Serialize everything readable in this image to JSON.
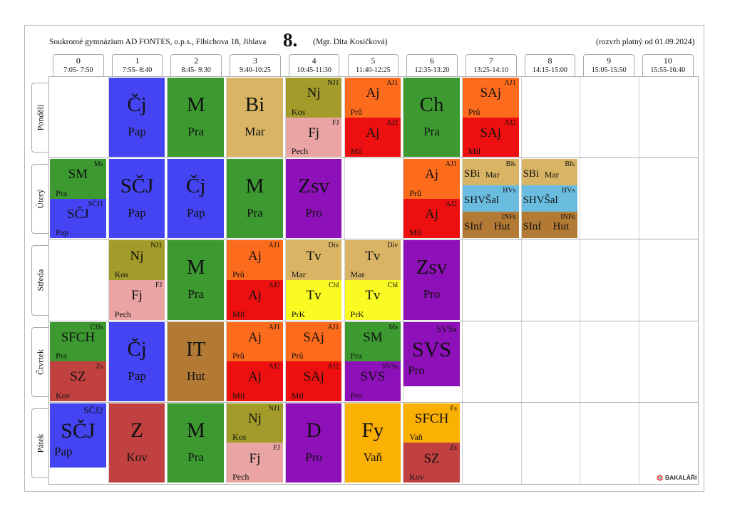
{
  "header": {
    "school": "Soukromé gymnázium AD FONTES, o.p.s., Fibichova 18, Jihlava",
    "class_name": "8.",
    "teacher": "(Mgr. Dita Kosičková)",
    "valid_from": "(rozvrh platný od 01.09.2024)"
  },
  "periods": [
    {
      "num": "0",
      "time": "7:05- 7:50"
    },
    {
      "num": "1",
      "time": "7:55- 8:40"
    },
    {
      "num": "2",
      "time": "8:45- 9:30"
    },
    {
      "num": "3",
      "time": "9:40-10:25"
    },
    {
      "num": "4",
      "time": "10:45-11:30"
    },
    {
      "num": "5",
      "time": "11:40-12:25"
    },
    {
      "num": "6",
      "time": "12:35-13:20"
    },
    {
      "num": "7",
      "time": "13:25-14:10"
    },
    {
      "num": "8",
      "time": "14:15-15:00"
    },
    {
      "num": "9",
      "time": "15:05-15:50"
    },
    {
      "num": "10",
      "time": "15:55-16:40"
    }
  ],
  "days": [
    "Pondělí",
    "Úterý",
    "Středa",
    "Čtvrtek",
    "Pátek"
  ],
  "colors": {
    "Cj": "#4444f2",
    "M": "#3c9a31",
    "Bi": "#d8b464",
    "Nj": "#a39c2a",
    "Fj": "#eaa4a4",
    "Aj1": "#fd6b1c",
    "Aj2": "#ee1010",
    "Ch": "#3c9a31",
    "Zsv": "#8e10b8",
    "Tv1": "#d8b464",
    "Tv2": "#fbfb24",
    "IT": "#b27a34",
    "Z": "#c14141",
    "D": "#8e10b8",
    "Fy": "#fbb104",
    "SVS": "#8e10b8",
    "SBi": "#d8b464",
    "SHV": "#6bbde0",
    "SInf": "#b27a34",
    "SFCH": "#fbb104"
  },
  "lessons": [
    {
      "day": 0,
      "period": 1,
      "color": "#4444f2",
      "subject": "Čj",
      "teacher": "Pap"
    },
    {
      "day": 0,
      "period": 2,
      "color": "#3c9a31",
      "subject": "M",
      "teacher": "Pra"
    },
    {
      "day": 0,
      "period": 3,
      "color": "#d8b464",
      "subject": "Bi",
      "teacher": "Mar"
    },
    {
      "day": 0,
      "period": 4,
      "color": "#a39c2a",
      "subject": "Nj",
      "teacher": "Kos",
      "group": "NJ1",
      "part": 0,
      "parts": 2
    },
    {
      "day": 0,
      "period": 4,
      "color": "#eaa4a4",
      "subject": "Fj",
      "teacher": "Pech",
      "group": "FJ",
      "part": 1,
      "parts": 2
    },
    {
      "day": 0,
      "period": 5,
      "color": "#fd6b1c",
      "subject": "Aj",
      "teacher": "Prů",
      "group": "AJ1",
      "part": 0,
      "parts": 2
    },
    {
      "day": 0,
      "period": 5,
      "color": "#ee1010",
      "subject": "Aj",
      "teacher": "Mil",
      "group": "AJ2",
      "part": 1,
      "parts": 2
    },
    {
      "day": 0,
      "period": 6,
      "color": "#3c9a31",
      "subject": "Ch",
      "teacher": "Pra"
    },
    {
      "day": 0,
      "period": 7,
      "color": "#fd6b1c",
      "subject": "SAj",
      "teacher": "Prů",
      "group": "AJ1",
      "part": 0,
      "parts": 2
    },
    {
      "day": 0,
      "period": 7,
      "color": "#ee1010",
      "subject": "SAj",
      "teacher": "Mil",
      "group": "AJ2",
      "part": 1,
      "parts": 2
    },
    {
      "day": 1,
      "period": 0,
      "color": "#3c9a31",
      "subject": "SM",
      "teacher": "Pra",
      "group": "Ms",
      "part": 0,
      "parts": 2
    },
    {
      "day": 1,
      "period": 0,
      "color": "#4444f2",
      "subject": "SČJ",
      "teacher": "Pap",
      "group": "SČJ1",
      "part": 1,
      "parts": 2
    },
    {
      "day": 1,
      "period": 1,
      "color": "#4444f2",
      "subject": "SČJ",
      "teacher": "Pap"
    },
    {
      "day": 1,
      "period": 2,
      "color": "#4444f2",
      "subject": "Čj",
      "teacher": "Pap"
    },
    {
      "day": 1,
      "period": 3,
      "color": "#3c9a31",
      "subject": "M",
      "teacher": "Pra"
    },
    {
      "day": 1,
      "period": 4,
      "color": "#8e10b8",
      "subject": "Zsv",
      "teacher": "Pro"
    },
    {
      "day": 1,
      "period": 6,
      "color": "#fd6b1c",
      "subject": "Aj",
      "teacher": "Prů",
      "group": "AJ1",
      "part": 0,
      "parts": 2
    },
    {
      "day": 1,
      "period": 6,
      "color": "#ee1010",
      "subject": "Aj",
      "teacher": "Mil",
      "group": "AJ2",
      "part": 1,
      "parts": 2
    },
    {
      "day": 1,
      "period": 7,
      "color": "#d8b464",
      "subject": "SBi",
      "teacher": "Mar",
      "group": "BIs",
      "part": 0,
      "parts": 3
    },
    {
      "day": 1,
      "period": 7,
      "color": "#6bbde0",
      "subject": "SHV",
      "teacher": "Šal",
      "group": "HVs",
      "part": 1,
      "parts": 3
    },
    {
      "day": 1,
      "period": 7,
      "color": "#b27a34",
      "subject": "SInf",
      "teacher": "Hut",
      "group": "INFs",
      "part": 2,
      "parts": 3
    },
    {
      "day": 1,
      "period": 8,
      "color": "#d8b464",
      "subject": "SBi",
      "teacher": "Mar",
      "group": "BIs",
      "part": 0,
      "parts": 3
    },
    {
      "day": 1,
      "period": 8,
      "color": "#6bbde0",
      "subject": "SHV",
      "teacher": "Šal",
      "group": "HVs",
      "part": 1,
      "parts": 3
    },
    {
      "day": 1,
      "period": 8,
      "color": "#b27a34",
      "subject": "SInf",
      "teacher": "Hut",
      "group": "INFs",
      "part": 2,
      "parts": 3
    },
    {
      "day": 2,
      "period": 1,
      "color": "#a39c2a",
      "subject": "Nj",
      "teacher": "Kos",
      "group": "NJ1",
      "part": 0,
      "parts": 2
    },
    {
      "day": 2,
      "period": 1,
      "color": "#eaa4a4",
      "subject": "Fj",
      "teacher": "Pech",
      "group": "FJ",
      "part": 1,
      "parts": 2
    },
    {
      "day": 2,
      "period": 2,
      "color": "#3c9a31",
      "subject": "M",
      "teacher": "Pra"
    },
    {
      "day": 2,
      "period": 3,
      "color": "#fd6b1c",
      "subject": "Aj",
      "teacher": "Prů",
      "group": "AJ1",
      "part": 0,
      "parts": 2
    },
    {
      "day": 2,
      "period": 3,
      "color": "#ee1010",
      "subject": "Aj",
      "teacher": "Mil",
      "group": "AJ2",
      "part": 1,
      "parts": 2
    },
    {
      "day": 2,
      "period": 4,
      "color": "#d8b464",
      "subject": "Tv",
      "teacher": "Mar",
      "group": "Div",
      "part": 0,
      "parts": 2
    },
    {
      "day": 2,
      "period": 4,
      "color": "#fbfb24",
      "subject": "Tv",
      "teacher": "PrK",
      "group": "Chl",
      "part": 1,
      "parts": 2
    },
    {
      "day": 2,
      "period": 5,
      "color": "#d8b464",
      "subject": "Tv",
      "teacher": "Mar",
      "group": "Div",
      "part": 0,
      "parts": 2
    },
    {
      "day": 2,
      "period": 5,
      "color": "#fbfb24",
      "subject": "Tv",
      "teacher": "PrK",
      "group": "Chl",
      "part": 1,
      "parts": 2
    },
    {
      "day": 2,
      "period": 6,
      "color": "#8e10b8",
      "subject": "Zsv",
      "teacher": "Pro"
    },
    {
      "day": 3,
      "period": 0,
      "color": "#3c9a31",
      "subject": "SFCH",
      "teacher": "Pra",
      "group": "CHs",
      "part": 0,
      "parts": 2
    },
    {
      "day": 3,
      "period": 0,
      "color": "#c14141",
      "subject": "SZ",
      "teacher": "Kov",
      "group": "Zs",
      "part": 1,
      "parts": 2
    },
    {
      "day": 3,
      "period": 1,
      "color": "#4444f2",
      "subject": "Čj",
      "teacher": "Pap"
    },
    {
      "day": 3,
      "period": 2,
      "color": "#b27a34",
      "subject": "IT",
      "teacher": "Hut"
    },
    {
      "day": 3,
      "period": 3,
      "color": "#fd6b1c",
      "subject": "Aj",
      "teacher": "Prů",
      "group": "AJ1",
      "part": 0,
      "parts": 2
    },
    {
      "day": 3,
      "period": 3,
      "color": "#ee1010",
      "subject": "Aj",
      "teacher": "Mil",
      "group": "AJ2",
      "part": 1,
      "parts": 2
    },
    {
      "day": 3,
      "period": 4,
      "color": "#fd6b1c",
      "subject": "SAj",
      "teacher": "Prů",
      "group": "AJ1",
      "part": 0,
      "parts": 2
    },
    {
      "day": 3,
      "period": 4,
      "color": "#ee1010",
      "subject": "SAj",
      "teacher": "Mil",
      "group": "AJ2",
      "part": 1,
      "parts": 2
    },
    {
      "day": 3,
      "period": 5,
      "color": "#3c9a31",
      "subject": "SM",
      "teacher": "Pra",
      "group": "Ms",
      "part": 0,
      "parts": 2
    },
    {
      "day": 3,
      "period": 5,
      "color": "#8e10b8",
      "subject": "SVS",
      "teacher": "Pro",
      "group": "SVSs",
      "part": 1,
      "parts": 2
    },
    {
      "day": 3,
      "period": 6,
      "color": "#8e10b8",
      "subject": "SVS",
      "teacher": "Pro",
      "group": "SVSs",
      "short": true
    },
    {
      "day": 4,
      "period": 0,
      "color": "#4444f2",
      "subject": "SČJ",
      "teacher": "Pap",
      "group": "SČJ2",
      "short": true
    },
    {
      "day": 4,
      "period": 1,
      "color": "#c14141",
      "subject": "Z",
      "teacher": "Kov"
    },
    {
      "day": 4,
      "period": 2,
      "color": "#3c9a31",
      "subject": "M",
      "teacher": "Pra"
    },
    {
      "day": 4,
      "period": 3,
      "color": "#a39c2a",
      "subject": "Nj",
      "teacher": "Kos",
      "group": "NJ1",
      "part": 0,
      "parts": 2
    },
    {
      "day": 4,
      "period": 3,
      "color": "#eaa4a4",
      "subject": "Fj",
      "teacher": "Pech",
      "group": "FJ",
      "part": 1,
      "parts": 2
    },
    {
      "day": 4,
      "period": 4,
      "color": "#8e10b8",
      "subject": "D",
      "teacher": "Pro"
    },
    {
      "day": 4,
      "period": 5,
      "color": "#fbb104",
      "subject": "Fy",
      "teacher": "Vaň"
    },
    {
      "day": 4,
      "period": 6,
      "color": "#fbb104",
      "subject": "SFCH",
      "teacher": "Vaň",
      "group": "Fs",
      "part": 0,
      "parts": 2
    },
    {
      "day": 4,
      "period": 6,
      "color": "#c14141",
      "subject": "SZ",
      "teacher": "Kov",
      "group": "Zs",
      "part": 1,
      "parts": 2
    }
  ],
  "footer": {
    "logo": "BAKALÁŘI"
  }
}
